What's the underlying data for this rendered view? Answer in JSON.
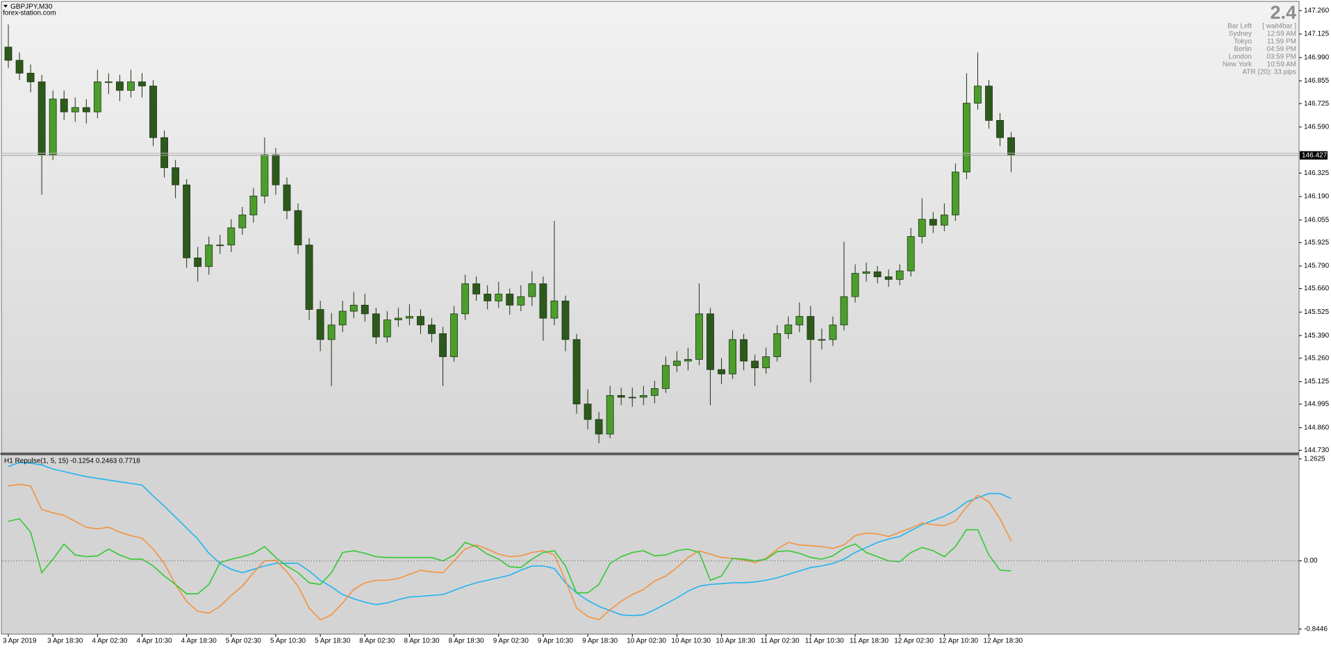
{
  "header": {
    "symbol": "GBPJPY,M30",
    "source": "forex-station.com"
  },
  "info_panel": {
    "big_value": 2.4,
    "rows": [
      [
        "Bar Left",
        "[ wait4bar ]"
      ],
      [
        "Sydney",
        "12:59 AM"
      ],
      [
        "Tokyo",
        "11:59 PM"
      ],
      [
        "Berlin",
        "04:59 PM"
      ],
      [
        "London",
        "03:59 PM"
      ],
      [
        "New York",
        "10:59 AM"
      ]
    ],
    "atr": "ATR (20): 33 pips"
  },
  "chart_data": {
    "type": "candlestick",
    "categories": [
      "3 Apr 2019",
      null,
      null,
      null,
      "3 Apr 18:30",
      null,
      null,
      null,
      "4 Apr 02:30",
      null,
      null,
      null,
      "4 Apr 10:30",
      null,
      null,
      null,
      "4 Apr 18:30",
      null,
      null,
      null,
      "5 Apr 02:30",
      null,
      null,
      null,
      "5 Apr 10:30",
      null,
      null,
      null,
      "5 Apr 18:30",
      null,
      null,
      null,
      "8 Apr 02:30",
      null,
      null,
      null,
      "8 Apr 10:30",
      null,
      null,
      null,
      "8 Apr 18:30",
      null,
      null,
      null,
      "9 Apr 02:30",
      null,
      null,
      null,
      "9 Apr 10:30",
      null,
      null,
      null,
      "9 Apr 18:30",
      null,
      null,
      null,
      "10 Apr 02:30",
      null,
      null,
      null,
      "10 Apr 10:30",
      null,
      null,
      null,
      "10 Apr 18:30",
      null,
      null,
      null,
      "11 Apr 02:30",
      null,
      null,
      null,
      "11 Apr 10:30",
      null,
      null,
      null,
      "11 Apr 18:30",
      null,
      null,
      null,
      "12 Apr 02:30",
      null,
      null,
      null,
      "12 Apr 10:30",
      null,
      null,
      null,
      "12 Apr 18:30",
      null,
      null
    ],
    "open": [
      147.05,
      146.974,
      146.9,
      146.85,
      146.43,
      146.751,
      146.677,
      146.702,
      146.677,
      146.85,
      146.85,
      146.801,
      146.85,
      146.826,
      146.529,
      146.356,
      146.257,
      145.837,
      145.787,
      145.911,
      145.911,
      146.01,
      146.084,
      146.193,
      146.43,
      146.257,
      146.109,
      145.911,
      145.54,
      145.367,
      145.451,
      145.53,
      145.565,
      145.515,
      145.382,
      145.48,
      145.49,
      145.5,
      145.451,
      145.401,
      145.268,
      145.515,
      145.688,
      145.629,
      145.589,
      145.629,
      145.565,
      145.614,
      145.688,
      145.49,
      145.589,
      145.367,
      144.996,
      144.907,
      144.823,
      145.045,
      145.035,
      145.035,
      145.045,
      145.085,
      145.218,
      145.243,
      145.253,
      145.515,
      145.194,
      145.169,
      145.367,
      145.243,
      145.204,
      145.268,
      145.401,
      145.451,
      145.5,
      145.367,
      145.367,
      145.451,
      145.614,
      145.748,
      145.757,
      145.728,
      145.713,
      145.762,
      145.96,
      146.059,
      146.025,
      146.084,
      146.331,
      146.727,
      146.826,
      146.628,
      146.529
    ],
    "high": [
      147.18,
      147.02,
      146.95,
      146.89,
      146.8,
      146.8,
      146.76,
      146.75,
      146.92,
      146.9,
      146.89,
      146.92,
      146.9,
      146.86,
      146.57,
      146.4,
      146.29,
      145.9,
      145.96,
      145.97,
      146.06,
      146.13,
      146.24,
      146.53,
      146.47,
      146.3,
      146.15,
      145.95,
      145.59,
      145.52,
      145.59,
      145.64,
      145.63,
      145.55,
      145.53,
      145.55,
      145.57,
      145.54,
      145.49,
      145.44,
      145.56,
      145.74,
      145.73,
      145.68,
      145.7,
      145.66,
      145.68,
      145.76,
      145.73,
      146.05,
      145.62,
      145.4,
      145.08,
      144.95,
      145.1,
      145.09,
      145.09,
      145.1,
      145.13,
      145.27,
      145.3,
      145.32,
      145.69,
      145.55,
      145.26,
      145.42,
      145.4,
      145.28,
      145.32,
      145.45,
      145.5,
      145.58,
      145.56,
      145.43,
      145.5,
      145.93,
      145.8,
      145.81,
      145.79,
      145.77,
      145.8,
      146.01,
      146.18,
      146.1,
      146.15,
      146.38,
      146.9,
      147.02,
      146.86,
      146.67,
      146.56
    ],
    "low": [
      146.93,
      146.86,
      146.79,
      146.2,
      146.4,
      146.63,
      146.62,
      146.61,
      146.64,
      146.78,
      146.74,
      146.76,
      146.76,
      146.48,
      146.3,
      146.18,
      145.78,
      145.7,
      145.74,
      145.86,
      145.87,
      145.97,
      146.04,
      146.15,
      146.2,
      146.06,
      145.86,
      145.48,
      145.3,
      145.1,
      145.41,
      145.49,
      145.47,
      145.34,
      145.35,
      145.44,
      145.45,
      145.4,
      145.35,
      145.1,
      145.24,
      145.48,
      145.59,
      145.54,
      145.55,
      145.51,
      145.53,
      145.56,
      145.36,
      145.45,
      145.3,
      144.94,
      144.85,
      144.77,
      144.8,
      144.99,
      144.98,
      144.99,
      145.0,
      145.06,
      145.18,
      145.19,
      145.22,
      144.99,
      145.11,
      145.14,
      145.19,
      145.1,
      145.17,
      145.24,
      145.37,
      145.41,
      145.12,
      145.31,
      145.33,
      145.42,
      145.58,
      145.7,
      145.69,
      145.67,
      145.68,
      145.73,
      145.92,
      145.98,
      145.99,
      146.05,
      146.29,
      146.69,
      146.58,
      146.48,
      146.33
    ],
    "close": [
      146.974,
      146.9,
      146.85,
      146.43,
      146.751,
      146.677,
      146.702,
      146.677,
      146.85,
      146.85,
      146.801,
      146.85,
      146.826,
      146.529,
      146.356,
      146.257,
      145.837,
      145.787,
      145.911,
      145.911,
      146.01,
      146.084,
      146.193,
      146.43,
      146.257,
      146.109,
      145.911,
      145.54,
      145.367,
      145.451,
      145.53,
      145.565,
      145.515,
      145.382,
      145.48,
      145.49,
      145.5,
      145.451,
      145.401,
      145.268,
      145.515,
      145.688,
      145.629,
      145.589,
      145.629,
      145.565,
      145.614,
      145.688,
      145.49,
      145.589,
      145.367,
      144.996,
      144.907,
      144.823,
      145.045,
      145.035,
      145.035,
      145.045,
      145.085,
      145.218,
      145.243,
      145.253,
      145.515,
      145.194,
      145.169,
      145.367,
      145.243,
      145.204,
      145.268,
      145.401,
      145.451,
      145.5,
      145.367,
      145.367,
      145.451,
      145.614,
      145.748,
      145.757,
      145.728,
      145.713,
      145.762,
      145.96,
      146.059,
      146.025,
      146.084,
      146.331,
      146.727,
      146.826,
      146.628,
      146.529,
      146.427
    ],
    "up_color": "#4c9e2c",
    "down_color": "#2d5a1c",
    "wick_color": "#1b3010",
    "bid": 146.427,
    "ylim": [
      144.715,
      147.305
    ],
    "yticks": [
      {
        "value": 147.26,
        "label": "147.260"
      },
      147.125,
      {
        "value": 146.99,
        "label": "146.990"
      },
      146.855,
      146.725,
      {
        "value": 146.59,
        "label": "146.590"
      },
      146.325,
      {
        "value": 146.19,
        "label": "146.190"
      },
      146.055,
      145.925,
      {
        "value": 145.79,
        "label": "145.790"
      },
      {
        "value": 145.66,
        "label": "145.660"
      },
      145.525,
      {
        "value": 145.39,
        "label": "145.390"
      },
      {
        "value": 145.26,
        "label": "145.260"
      },
      145.125,
      144.995,
      {
        "value": 144.86,
        "label": "144.860"
      },
      {
        "value": 144.73,
        "label": "144.730"
      }
    ],
    "indicator": {
      "type": "line",
      "title": "H1 Repulse(1, 5, 15) -0.1254 0.2463 0.7718",
      "ylim": [
        -0.907,
        1.304
      ],
      "yticks": [
        1.2625,
        {
          "value": 0,
          "label": "0.00"
        },
        -0.8446
      ],
      "level_line": 0,
      "series": [
        {
          "color": "#1eb4f0",
          "values": [
            1.168,
            1.22,
            1.21,
            1.189,
            1.137,
            1.106,
            1.074,
            1.043,
            1.022,
            1.001,
            0.98,
            0.96,
            0.939,
            0.803,
            0.678,
            0.542,
            0.407,
            0.271,
            0.094,
            -0.031,
            -0.104,
            -0.146,
            -0.104,
            -0.063,
            -0.031,
            -0.031,
            -0.031,
            -0.125,
            -0.24,
            -0.323,
            -0.417,
            -0.469,
            -0.511,
            -0.542,
            -0.521,
            -0.48,
            -0.448,
            -0.438,
            -0.428,
            -0.417,
            -0.365,
            -0.313,
            -0.271,
            -0.24,
            -0.209,
            -0.177,
            -0.115,
            -0.063,
            -0.063,
            -0.094,
            -0.271,
            -0.396,
            -0.49,
            -0.563,
            -0.615,
            -0.668,
            -0.678,
            -0.668,
            -0.605,
            -0.532,
            -0.459,
            -0.375,
            -0.313,
            -0.292,
            -0.282,
            -0.271,
            -0.271,
            -0.261,
            -0.24,
            -0.209,
            -0.167,
            -0.125,
            -0.083,
            -0.063,
            -0.031,
            0.021,
            0.104,
            0.167,
            0.229,
            0.271,
            0.302,
            0.375,
            0.448,
            0.501,
            0.553,
            0.626,
            0.73,
            0.782,
            0.834,
            0.834,
            0.772
          ]
        },
        {
          "color": "#f5913c",
          "values": [
            0.928,
            0.949,
            0.928,
            0.636,
            0.595,
            0.563,
            0.49,
            0.417,
            0.396,
            0.417,
            0.355,
            0.313,
            0.282,
            0.146,
            -0.031,
            -0.292,
            -0.501,
            -0.626,
            -0.647,
            -0.563,
            -0.428,
            -0.313,
            -0.146,
            0,
            0.01,
            -0.136,
            -0.313,
            -0.584,
            -0.73,
            -0.668,
            -0.522,
            -0.355,
            -0.271,
            -0.24,
            -0.24,
            -0.219,
            -0.167,
            -0.115,
            -0.136,
            -0.146,
            0,
            0.146,
            0.198,
            0.146,
            0.083,
            0.052,
            0.063,
            0.104,
            0.125,
            0.073,
            -0.24,
            -0.584,
            -0.688,
            -0.73,
            -0.605,
            -0.501,
            -0.417,
            -0.355,
            -0.25,
            -0.188,
            -0.083,
            0.042,
            0.125,
            0.083,
            0.042,
            0.031,
            0.01,
            -0.021,
            0.031,
            0.146,
            0.229,
            0.198,
            0.188,
            0.177,
            0.156,
            0.198,
            0.313,
            0.344,
            0.334,
            0.302,
            0.355,
            0.407,
            0.469,
            0.448,
            0.438,
            0.49,
            0.668,
            0.814,
            0.73,
            0.522,
            0.246
          ]
        },
        {
          "color": "#32c832",
          "values": [
            0.49,
            0.522,
            0.355,
            -0.146,
            0.021,
            0.209,
            0.073,
            0.052,
            0.063,
            0.146,
            0.073,
            0.021,
            0.021,
            -0.063,
            -0.188,
            -0.292,
            -0.407,
            -0.407,
            -0.292,
            -0.021,
            0.021,
            0.052,
            0.094,
            0.177,
            0.042,
            -0.063,
            -0.146,
            -0.271,
            -0.292,
            -0.146,
            0.104,
            0.125,
            0.094,
            0.052,
            0.042,
            0.042,
            0.042,
            0.042,
            0.042,
            0,
            0.073,
            0.229,
            0.177,
            0.083,
            0.021,
            -0.073,
            -0.083,
            0.021,
            0.104,
            0.125,
            -0.063,
            -0.396,
            -0.396,
            -0.292,
            -0.031,
            0.052,
            0.104,
            0.125,
            0.063,
            0.073,
            0.125,
            0.146,
            0.104,
            -0.24,
            -0.188,
            0.031,
            0.021,
            0,
            0.021,
            0.115,
            0.125,
            0.094,
            0.042,
            0.021,
            0.063,
            0.156,
            0.209,
            0.104,
            0.052,
            0,
            -0.01,
            0.104,
            0.167,
            0.125,
            0.052,
            0.177,
            0.386,
            0.386,
            0.073,
            -0.115,
            -0.125
          ]
        }
      ]
    }
  }
}
